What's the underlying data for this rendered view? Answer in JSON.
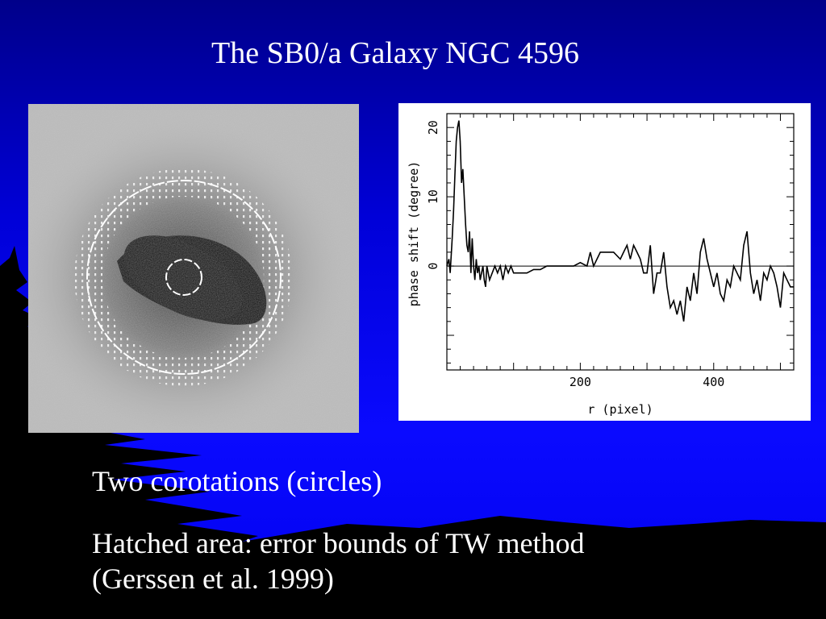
{
  "slide": {
    "title": "The SB0/a Galaxy NGC 4596",
    "bullets": [
      "Two corotations (circles)",
      "Hatched area: error bounds of TW method",
      "(Gerssen et al. 1999)"
    ]
  },
  "colors": {
    "background": "#0000ee",
    "text": "#ffffff",
    "scenery": "#000000"
  },
  "chart_data": {
    "type": "line",
    "title": "",
    "xlabel": "r (pixel)",
    "ylabel": "phase shift (degree)",
    "xlim": [
      0,
      520
    ],
    "ylim": [
      -15,
      22
    ],
    "xticks": [
      200,
      400
    ],
    "yticks": [
      0,
      10,
      20
    ],
    "zero_line": true,
    "series": [
      {
        "x": [
          0,
          3,
          5,
          8,
          10,
          12,
          14,
          16,
          18,
          20,
          22,
          24,
          26,
          28,
          30,
          32,
          34,
          36,
          38,
          40,
          42,
          44,
          46,
          48,
          50,
          52,
          54,
          56,
          58,
          60,
          64,
          68,
          72,
          76,
          80,
          84,
          88,
          92,
          96,
          100,
          105,
          110,
          120,
          130,
          140,
          150,
          160,
          170,
          180,
          190,
          200,
          210,
          215,
          220,
          230,
          240,
          250,
          260,
          265,
          270,
          275,
          280,
          285,
          290,
          295,
          300,
          305,
          310,
          315,
          320,
          325,
          330,
          335,
          340,
          345,
          350,
          355,
          360,
          365,
          370,
          375,
          380,
          385,
          390,
          400,
          405,
          410,
          415,
          420,
          425,
          430,
          435,
          440,
          445,
          450,
          455,
          460,
          465,
          470,
          475,
          480,
          485,
          490,
          495,
          500,
          505,
          510,
          515,
          520
        ],
        "y": [
          0,
          1,
          -1,
          4,
          8,
          13,
          18,
          20,
          21,
          18,
          12,
          14,
          10,
          6,
          3,
          2,
          5,
          -1,
          4,
          0,
          -2,
          1,
          -1,
          0,
          -2,
          -1,
          0,
          -2,
          -3,
          0,
          -2,
          -1,
          0,
          -1,
          0,
          -2,
          0,
          -1,
          0,
          -1,
          -1,
          -1,
          -1,
          -0.5,
          -0.5,
          0,
          0,
          0,
          0,
          0,
          0.5,
          0,
          2,
          0,
          2,
          2,
          2,
          1,
          2,
          3,
          1,
          3,
          2,
          1,
          -1,
          -1,
          3,
          -4,
          -1,
          -1,
          2,
          -3,
          -6,
          -5,
          -7,
          -5,
          -8,
          -3,
          -5,
          -1,
          -4,
          2,
          4,
          1,
          -3,
          -1,
          -4,
          -5,
          -2,
          -3,
          0,
          -1,
          -2,
          3,
          5,
          -1,
          -4,
          -2,
          -5,
          -1,
          -2,
          0,
          -1,
          -3,
          -6,
          -1,
          -2,
          -3,
          -3
        ]
      }
    ]
  }
}
